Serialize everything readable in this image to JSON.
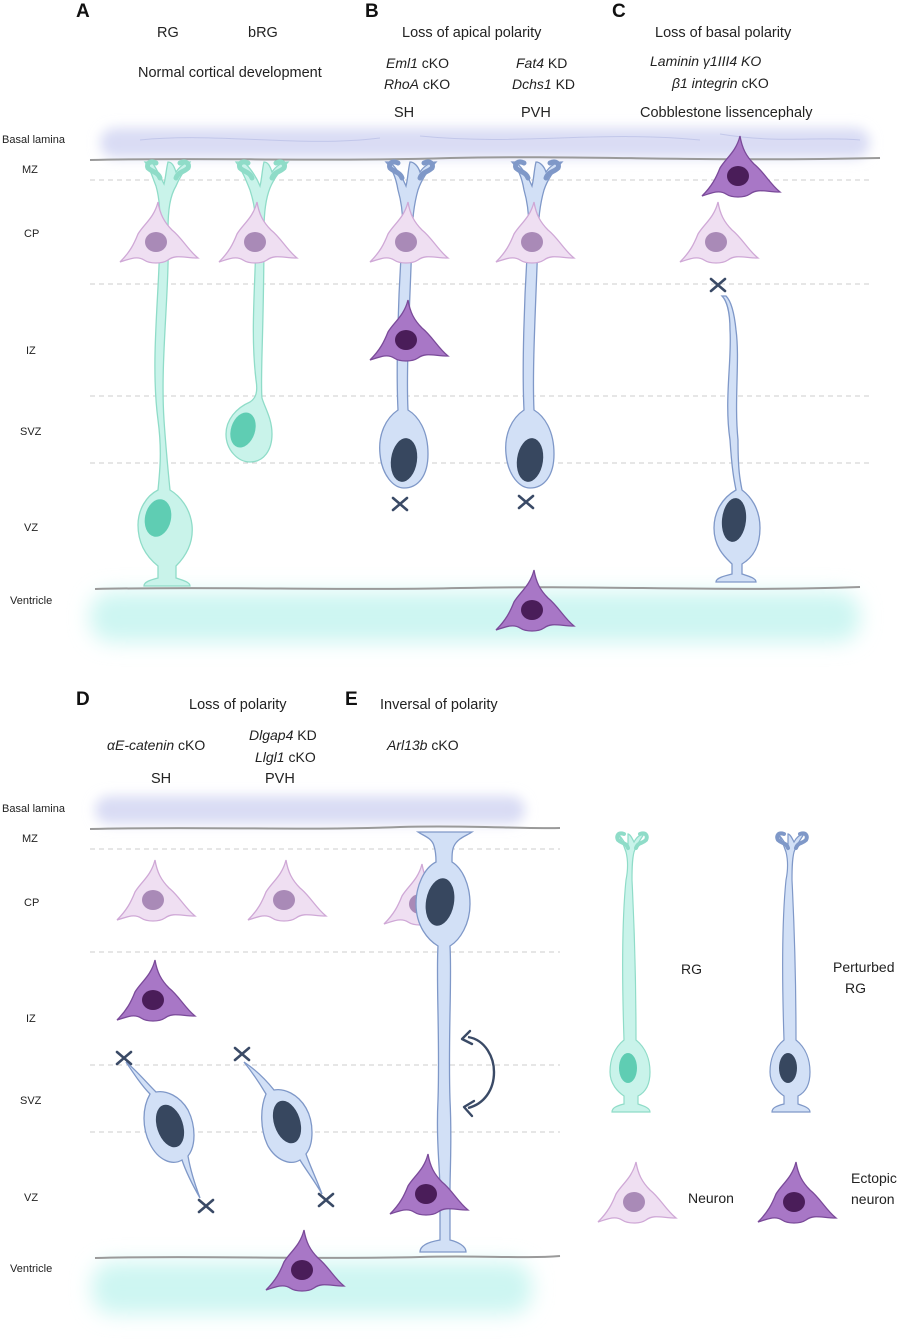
{
  "panels": {
    "A": {
      "letter": "A",
      "label_rg": "RG",
      "label_brg": "bRG",
      "title": "Normal cortical development"
    },
    "B": {
      "letter": "B",
      "title": "Loss of apical polarity",
      "gene1a": "Eml1",
      "gene1a_suffix": " cKO",
      "gene1b": "RhoA",
      "gene1b_suffix": " cKO",
      "pheno1": "SH",
      "gene2a": "Fat4",
      "gene2a_suffix": " KD",
      "gene2b": "Dchs1",
      "gene2b_suffix": " KD",
      "pheno2": "PVH"
    },
    "C": {
      "letter": "C",
      "title": "Loss of basal polarity",
      "gene1": "Laminin γ1III4 KO",
      "gene2": "β1 integrin",
      "gene2_suffix": " cKO",
      "pheno": "Cobblestone lissencephaly"
    },
    "D": {
      "letter": "D",
      "title": "Loss of polarity",
      "gene1": "αE-catenin",
      "gene1_suffix": " cKO",
      "pheno1": "SH",
      "gene2a": "Dlgap4",
      "gene2a_suffix": " KD",
      "gene2b": "Llgl1",
      "gene2b_suffix": " cKO",
      "pheno2": "PVH"
    },
    "E": {
      "letter": "E",
      "title": "Inversal of polarity",
      "gene": "Arl13b",
      "gene_suffix": " cKO"
    }
  },
  "zones": {
    "basal_lamina": "Basal lamina",
    "mz": "MZ",
    "cp": "CP",
    "iz": "IZ",
    "svz": "SVZ",
    "vz": "VZ",
    "ventricle": "Ventricle"
  },
  "legend": {
    "rg": "RG",
    "perturbed_rg_1": "Perturbed",
    "perturbed_rg_2": "RG",
    "neuron": "Neuron",
    "ectopic_1": "Ectopic",
    "ectopic_2": "neuron"
  },
  "colors": {
    "rg_fill": "#c9f3ea",
    "rg_stroke": "#8fdcc8",
    "rg_nucleus": "#5fcdb3",
    "prg_fill": "#d2e0f6",
    "prg_stroke": "#7f98c8",
    "prg_nucleus": "#37475f",
    "neuron_fill": "#efdff2",
    "neuron_stroke": "#cfa8d6",
    "neuron_nucleus": "#a98ab7",
    "ectopic_fill": "#a877c6",
    "ectopic_stroke": "#7a4a99",
    "ectopic_nucleus": "#4a1d59",
    "lamina": "#d9dcf4",
    "ventricle": "#cdf6f2",
    "line": "#9a9a9a",
    "mark": "#3a4a66"
  }
}
